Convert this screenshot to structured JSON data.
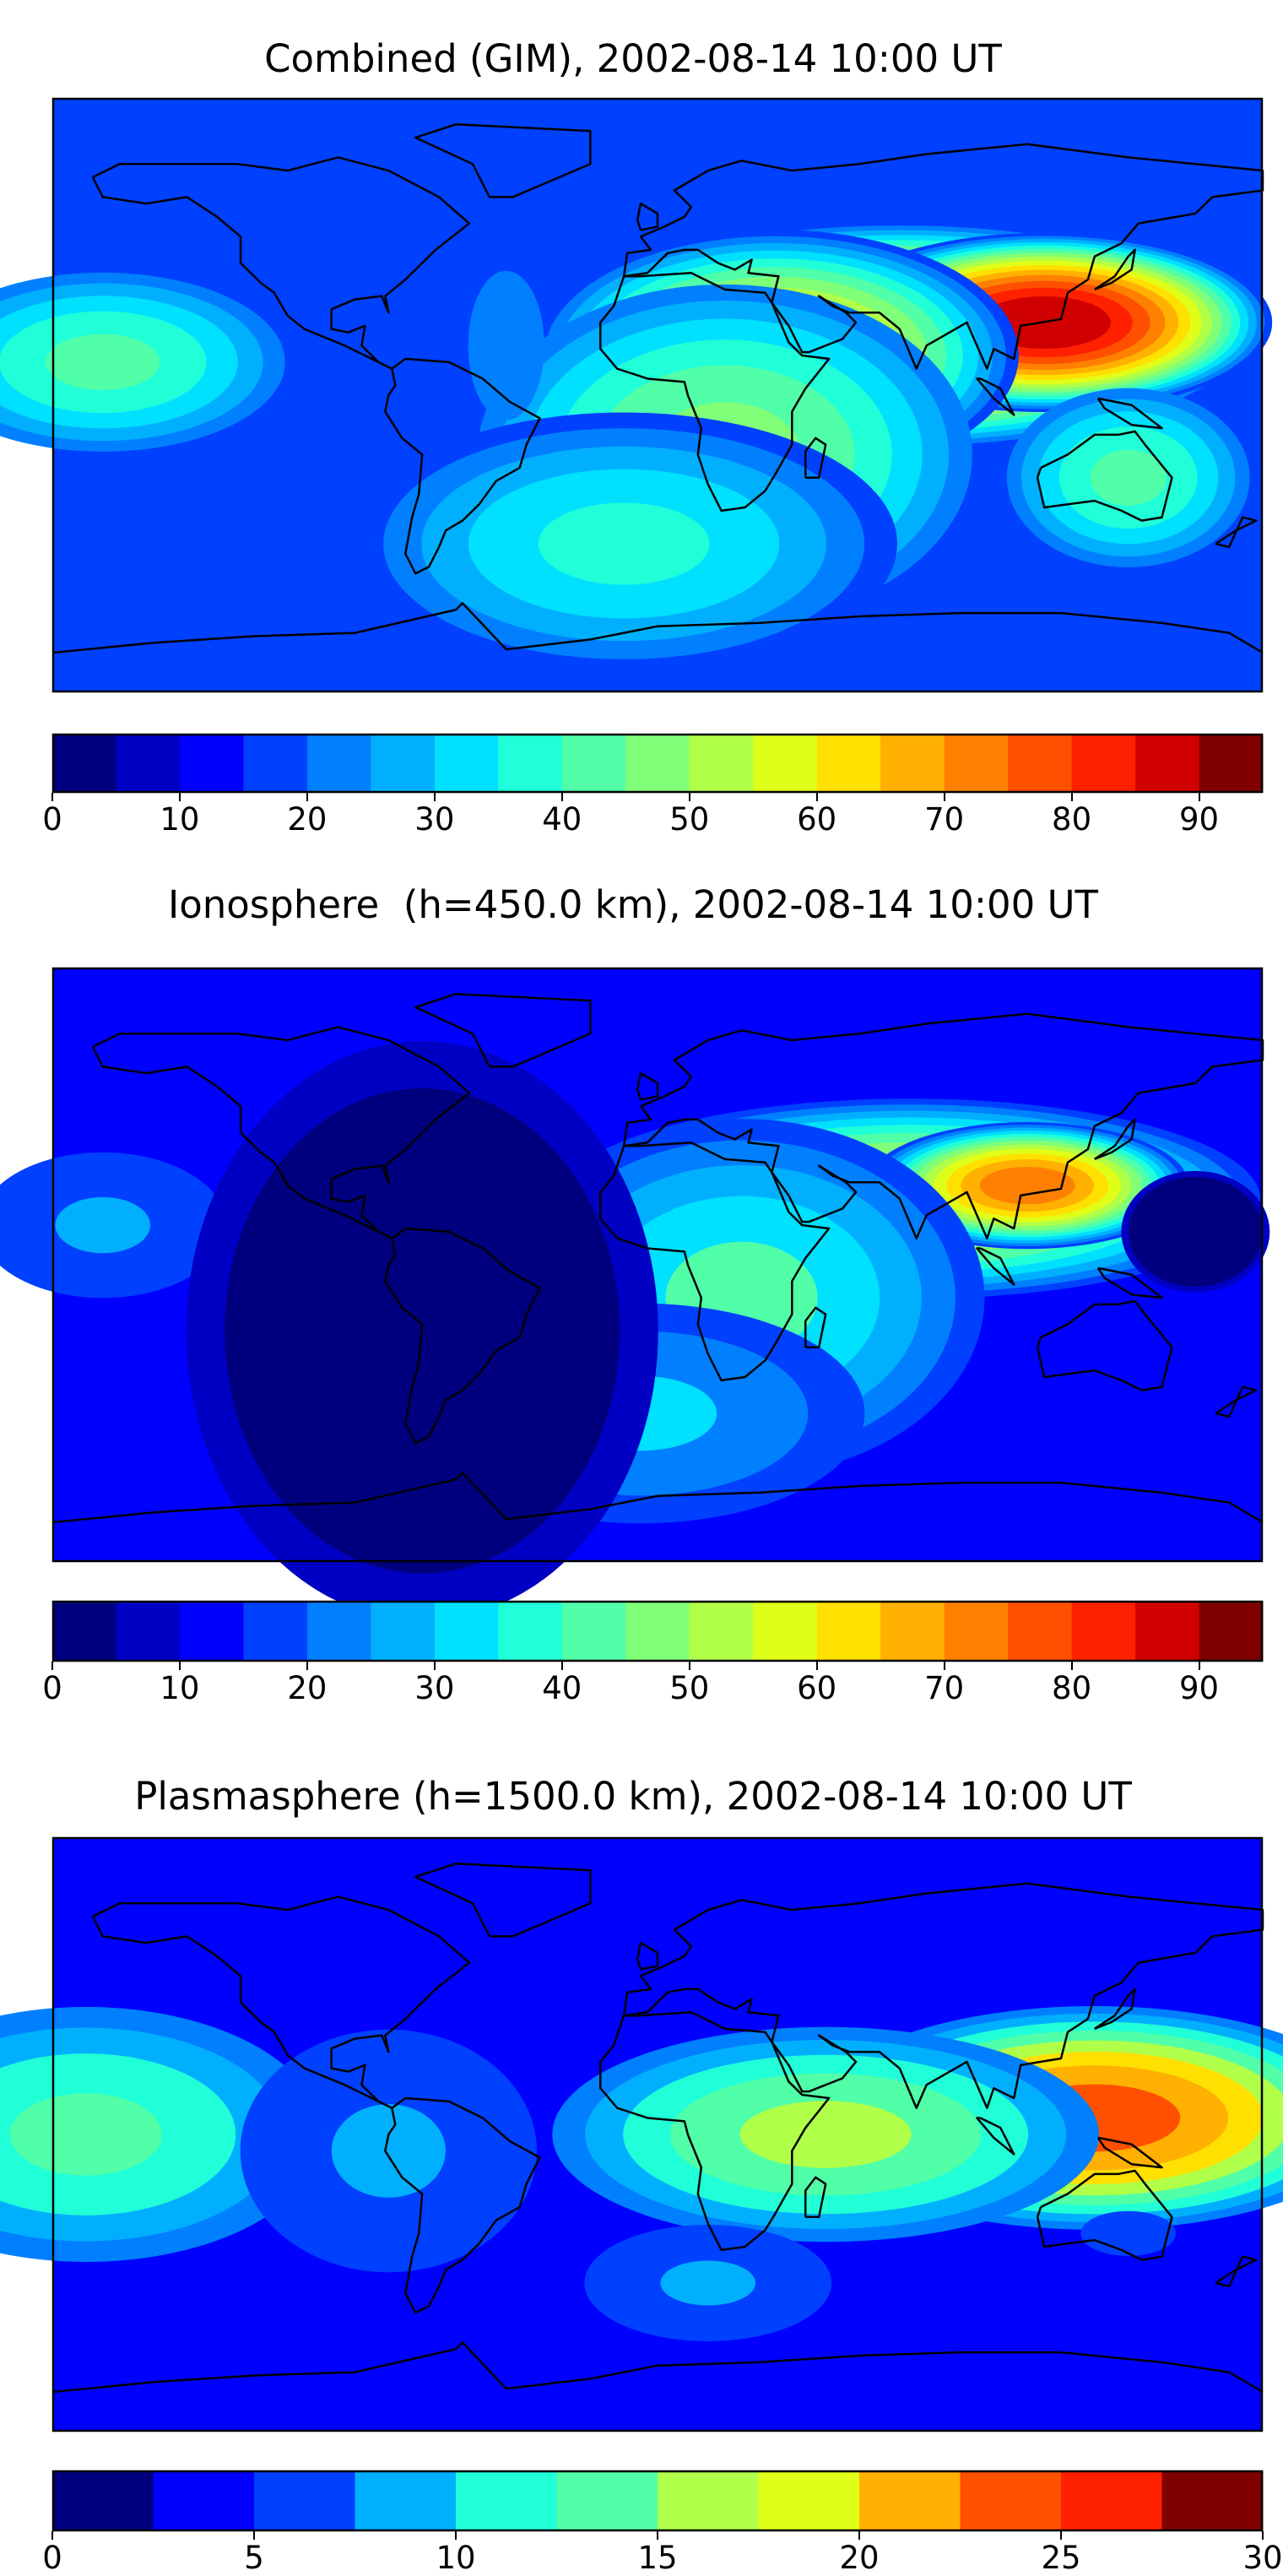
{
  "panels": [
    {
      "title": "Combined (GIM), 2002-08-14 10:00 UT",
      "colorbar": {
        "min": 0,
        "max": 95,
        "step": 5,
        "tick_values": [
          0,
          10,
          20,
          30,
          40,
          50,
          60,
          70,
          80,
          90
        ],
        "tick_labels": [
          "0",
          "10",
          "20",
          "30",
          "40",
          "50",
          "60",
          "70",
          "80",
          "90"
        ]
      },
      "features": [
        {
          "lon": 72,
          "lat": 18,
          "sx": 55,
          "sy": 18,
          "level": 78
        },
        {
          "lon": 115,
          "lat": 22,
          "sx": 35,
          "sy": 14,
          "level": 88
        },
        {
          "lon": 35,
          "lat": 12,
          "sx": 38,
          "sy": 20,
          "level": 64
        },
        {
          "lon": 20,
          "lat": -18,
          "sx": 40,
          "sy": 28,
          "level": 45
        },
        {
          "lon": -10,
          "lat": -45,
          "sx": 45,
          "sy": 22,
          "level": 38
        },
        {
          "lon": 140,
          "lat": -25,
          "sx": 20,
          "sy": 15,
          "level": 42
        },
        {
          "lon": -165,
          "lat": 10,
          "sx": 30,
          "sy": 15,
          "level": 40
        },
        {
          "lon": -45,
          "lat": 15,
          "sx": 20,
          "sy": 40,
          "level": 20
        }
      ],
      "base_level": 15
    },
    {
      "title": "Ionosphere  (h=450.0 km), 2002-08-14 10:00 UT",
      "colorbar": {
        "min": 0,
        "max": 95,
        "step": 5,
        "tick_values": [
          0,
          10,
          20,
          30,
          40,
          50,
          60,
          70,
          80,
          90
        ],
        "tick_labels": [
          "0",
          "10",
          "20",
          "30",
          "40",
          "50",
          "60",
          "70",
          "80",
          "90"
        ]
      },
      "features": [
        {
          "lon": 75,
          "lat": 20,
          "sx": 55,
          "sy": 16,
          "level": 60
        },
        {
          "lon": 110,
          "lat": 24,
          "sx": 25,
          "sy": 10,
          "level": 72
        },
        {
          "lon": 25,
          "lat": -10,
          "sx": 40,
          "sy": 30,
          "level": 40
        },
        {
          "lon": -5,
          "lat": -45,
          "sx": 40,
          "sy": 20,
          "level": 30
        },
        {
          "lon": 160,
          "lat": 10,
          "sx": 12,
          "sy": 10,
          "level": -15
        },
        {
          "lon": -165,
          "lat": 12,
          "sx": 25,
          "sy": 15,
          "level": 25
        },
        {
          "lon": -70,
          "lat": -20,
          "sx": 40,
          "sy": 50,
          "level": -8
        }
      ],
      "base_level": 14
    },
    {
      "title": "Plasmasphere (h=1500.0 km), 2002-08-14 10:00 UT",
      "colorbar": {
        "min": 0,
        "max": 30,
        "step": 2.5,
        "tick_values": [
          0,
          5,
          10,
          15,
          20,
          25,
          30
        ],
        "tick_labels": [
          "0",
          "5",
          "10",
          "15",
          "20",
          "25",
          "30"
        ]
      },
      "features": [
        {
          "lon": 130,
          "lat": 5,
          "sx": 45,
          "sy": 18,
          "level": 24
        },
        {
          "lon": 50,
          "lat": 0,
          "sx": 45,
          "sy": 18,
          "level": 16
        },
        {
          "lon": -170,
          "lat": 0,
          "sx": 40,
          "sy": 22,
          "level": 14
        },
        {
          "lon": -80,
          "lat": -5,
          "sx": 30,
          "sy": 25,
          "level": 8
        },
        {
          "lon": 15,
          "lat": -45,
          "sx": 25,
          "sy": 12,
          "level": 8
        },
        {
          "lon": 140,
          "lat": -30,
          "sx": 25,
          "sy": 12,
          "level": 6
        }
      ],
      "base_level": 4
    }
  ]
}
